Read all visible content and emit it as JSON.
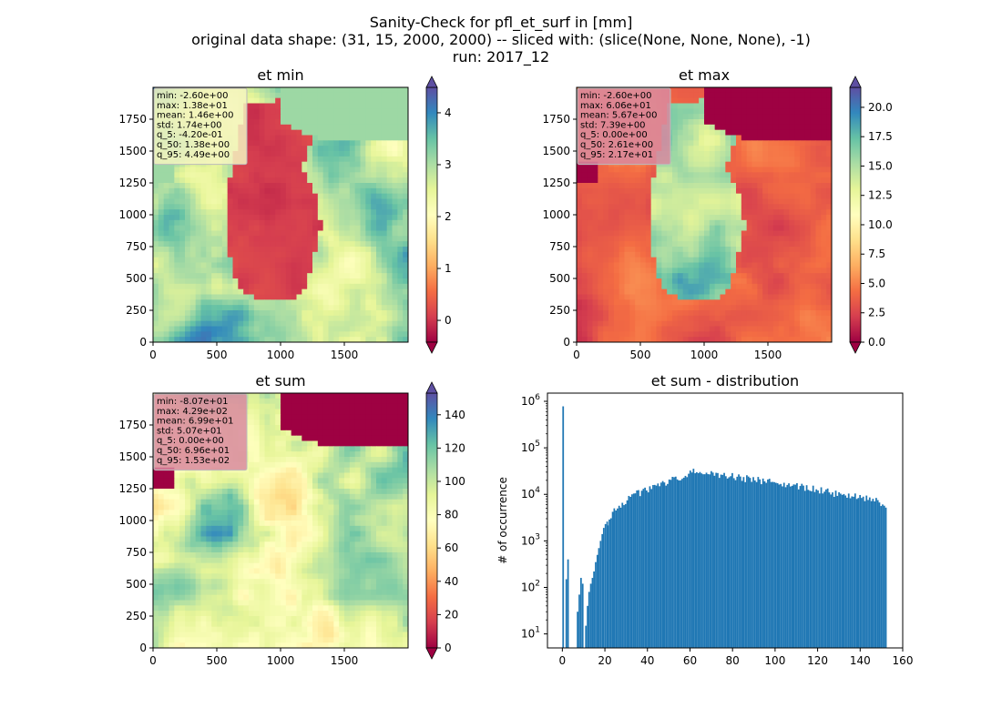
{
  "figure": {
    "suptitle_lines": [
      "Sanity-Check for pfl_et_surf in [mm]",
      "original data shape: (31, 15, 2000, 2000) -- sliced with: (slice(None, None, None), -1)",
      "run: 2017_12"
    ]
  },
  "chart_data": [
    {
      "type": "heatmap",
      "title": "et min",
      "x_ticks": [
        0,
        500,
        1000,
        1500
      ],
      "y_ticks": [
        0,
        250,
        500,
        750,
        1000,
        1250,
        1500,
        1750
      ],
      "xlim": [
        0,
        2000
      ],
      "ylim": [
        0,
        2000
      ],
      "colormap": "Spectral",
      "colorbar": {
        "range": [
          -0.42,
          4.49
        ],
        "ticks": [
          0,
          1,
          2,
          3,
          4
        ],
        "extend": "both"
      },
      "stats_box": {
        "background": "#f5f5c0",
        "lines": [
          "min: -2.60e+00",
          "max: 1.38e+01",
          "mean: 1.46e+00",
          "std: 1.74e+00",
          "q_5: -4.20e-01",
          "q_50: 1.38e+00",
          "q_95: 4.49e+00"
        ]
      }
    },
    {
      "type": "heatmap",
      "title": "et max",
      "x_ticks": [
        0,
        500,
        1000,
        1500
      ],
      "y_ticks": [
        0,
        250,
        500,
        750,
        1000,
        1250,
        1500,
        1750
      ],
      "xlim": [
        0,
        2000
      ],
      "ylim": [
        0,
        2000
      ],
      "colormap": "Spectral",
      "colorbar": {
        "range": [
          0.0,
          21.7
        ],
        "ticks": [
          0.0,
          2.5,
          5.0,
          7.5,
          10.0,
          12.5,
          15.0,
          17.5,
          20.0
        ],
        "tick_labels": [
          "0.0",
          "2.5",
          "5.0",
          "7.5",
          "10.0",
          "12.5",
          "15.0",
          "17.5",
          "20.0"
        ],
        "extend": "both"
      },
      "stats_box": {
        "background": "#d98aa0",
        "lines": [
          "min: -2.60e+00",
          "max: 6.06e+01",
          "mean: 5.67e+00",
          "std: 7.39e+00",
          "q_5: 0.00e+00",
          "q_50: 2.61e+00",
          "q_95: 2.17e+01"
        ]
      }
    },
    {
      "type": "heatmap",
      "title": "et sum",
      "x_ticks": [
        0,
        500,
        1000,
        1500
      ],
      "y_ticks": [
        0,
        250,
        500,
        750,
        1000,
        1250,
        1500,
        1750
      ],
      "xlim": [
        0,
        2000
      ],
      "ylim": [
        0,
        2000
      ],
      "colormap": "Spectral",
      "colorbar": {
        "range": [
          0.0,
          153.0
        ],
        "ticks": [
          0,
          20,
          40,
          60,
          80,
          100,
          120,
          140
        ],
        "extend": "both"
      },
      "stats_box": {
        "background": "#d98aa0",
        "lines": [
          "min: -8.07e+01",
          "max: 4.29e+02",
          "mean: 6.99e+01",
          "std: 5.07e+01",
          "q_5: 0.00e+00",
          "q_50: 6.96e+01",
          "q_95: 1.53e+02"
        ]
      }
    },
    {
      "type": "bar",
      "title": "et sum - distribution",
      "ylabel": "# of occurrence",
      "yscale": "log",
      "xlim": [
        -7,
        160
      ],
      "ylim": [
        5,
        1500000
      ],
      "x_ticks": [
        0,
        20,
        40,
        60,
        80,
        100,
        120,
        140,
        160
      ],
      "y_ticks": [
        10,
        100,
        1000,
        10000,
        100000,
        1000000
      ],
      "y_tick_labels": [
        {
          "base": "10",
          "exp": "1"
        },
        {
          "base": "10",
          "exp": "2"
        },
        {
          "base": "10",
          "exp": "3"
        },
        {
          "base": "10",
          "exp": "4"
        },
        {
          "base": "10",
          "exp": "5"
        },
        {
          "base": "10",
          "exp": "6"
        }
      ],
      "bar_color": "#1f77b4",
      "bin_width": 0.76,
      "bins": [
        {
          "x": 0.0,
          "count": 780000
        },
        {
          "x": 1.5,
          "count": 150
        },
        {
          "x": 2.3,
          "count": 400
        },
        {
          "x": 6.8,
          "count": 30
        },
        {
          "x": 7.6,
          "count": 70
        },
        {
          "x": 8.4,
          "count": 160
        },
        {
          "x": 9.2,
          "count": 120
        },
        {
          "x": 10.7,
          "count": 15
        },
        {
          "x": 11.5,
          "count": 40
        },
        {
          "x": 12.2,
          "count": 80
        },
        {
          "x": 13.0,
          "count": 120
        },
        {
          "x": 13.8,
          "count": 160
        },
        {
          "x": 14.5,
          "count": 220
        },
        {
          "x": 15.3,
          "count": 350
        },
        {
          "x": 16.1,
          "count": 500
        },
        {
          "x": 16.8,
          "count": 700
        },
        {
          "x": 17.6,
          "count": 1000
        },
        {
          "x": 18.4,
          "count": 1400
        },
        {
          "x": 19.1,
          "count": 1900
        },
        {
          "x": 19.9,
          "count": 2300
        },
        {
          "x": 20.7,
          "count": 2600
        }
      ],
      "envelope": [
        [
          21,
          2600
        ],
        [
          22,
          3300
        ],
        [
          24,
          4500
        ],
        [
          26,
          5500
        ],
        [
          28,
          6800
        ],
        [
          30,
          7800
        ],
        [
          32,
          9000
        ],
        [
          34,
          10000
        ],
        [
          36,
          11000
        ],
        [
          38,
          12000
        ],
        [
          40,
          13000
        ],
        [
          42,
          14000
        ],
        [
          44,
          15000
        ],
        [
          46,
          16000
        ],
        [
          48,
          17500
        ],
        [
          50,
          19000
        ],
        [
          52,
          21000
        ],
        [
          54,
          23000
        ],
        [
          56,
          25000
        ],
        [
          58,
          28000
        ],
        [
          60,
          30000
        ],
        [
          62,
          32000
        ],
        [
          64,
          31000
        ],
        [
          66,
          30000
        ],
        [
          68,
          29000
        ],
        [
          70,
          29000
        ],
        [
          72,
          28000
        ],
        [
          74,
          27000
        ],
        [
          76,
          26000
        ],
        [
          78,
          25000
        ],
        [
          80,
          25000
        ],
        [
          82,
          24000
        ],
        [
          84,
          23000
        ],
        [
          86,
          22000
        ],
        [
          88,
          21500
        ],
        [
          90,
          21000
        ],
        [
          92,
          20000
        ],
        [
          94,
          19500
        ],
        [
          96,
          19000
        ],
        [
          98,
          18500
        ],
        [
          100,
          18000
        ],
        [
          102,
          17000
        ],
        [
          104,
          16500
        ],
        [
          106,
          16000
        ],
        [
          108,
          15500
        ],
        [
          110,
          15000
        ],
        [
          112,
          14500
        ],
        [
          114,
          14000
        ],
        [
          116,
          13500
        ],
        [
          118,
          13000
        ],
        [
          120,
          12500
        ],
        [
          122,
          12000
        ],
        [
          124,
          11500
        ],
        [
          126,
          11000
        ],
        [
          128,
          10500
        ],
        [
          130,
          10000
        ],
        [
          132,
          9500
        ],
        [
          134,
          9000
        ],
        [
          136,
          9000
        ],
        [
          138,
          9000
        ],
        [
          140,
          8500
        ],
        [
          142,
          8000
        ],
        [
          144,
          8000
        ],
        [
          146,
          7500
        ],
        [
          148,
          7000
        ],
        [
          150,
          6000
        ],
        [
          152,
          4500
        ]
      ]
    }
  ]
}
